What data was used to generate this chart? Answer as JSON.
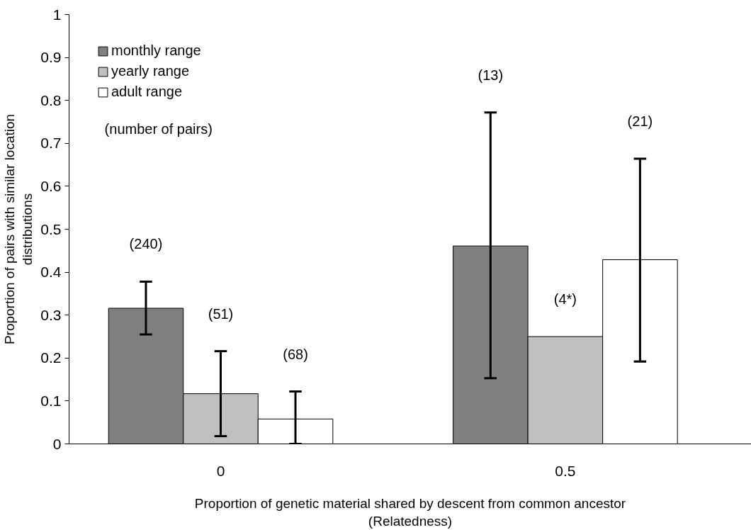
{
  "chart_data": {
    "type": "bar",
    "categories": [
      "0",
      "0.5"
    ],
    "xlabel": "Proportion of genetic material shared by descent from common ancestor\n(Relatedness)",
    "ylabel": "Proportion of pairs with similar location\ndistributions",
    "series": [
      {
        "name": "monthly range",
        "color": "#808080",
        "values": [
          0.316,
          0.461
        ],
        "errors": [
          [
            0.255,
            0.378
          ],
          [
            0.153,
            0.772
          ]
        ]
      },
      {
        "name": "yearly range",
        "color": "#c0c0c0",
        "values": [
          0.117,
          0.25
        ],
        "errors": [
          [
            0.018,
            0.216
          ],
          null
        ]
      },
      {
        "name": "adult range",
        "color": "#ffffff",
        "values": [
          0.058,
          0.429
        ],
        "errors": [
          [
            0,
            0.122
          ],
          [
            0.192,
            0.664
          ]
        ]
      }
    ],
    "annotations": [
      "(number of pairs)",
      "(240)",
      "(51)",
      "(68)",
      "(13)",
      "(4*)",
      "(21)"
    ],
    "ylim": [
      0,
      1
    ],
    "yticks": [
      0,
      0.1,
      0.2,
      0.3,
      0.4,
      0.5,
      0.6,
      0.7,
      0.8,
      0.9,
      1
    ],
    "grid": false,
    "legend": "top left"
  }
}
